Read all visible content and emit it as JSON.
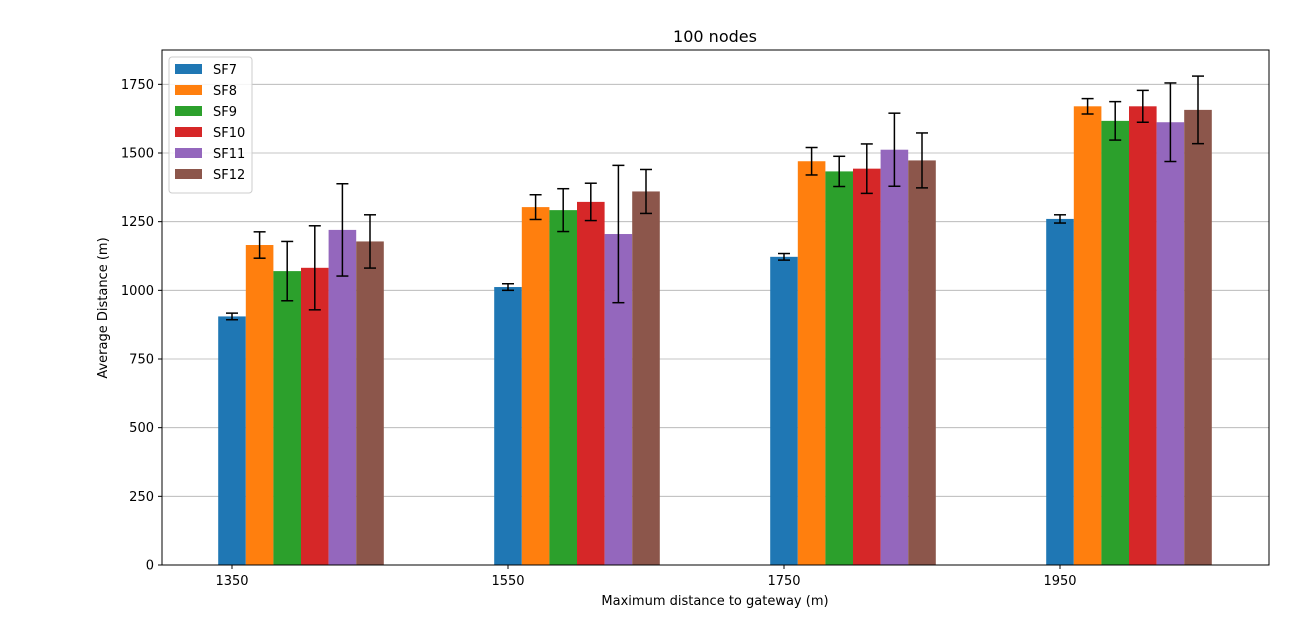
{
  "chart_data": {
    "type": "bar",
    "title": "100 nodes",
    "xlabel": "Maximum distance to gateway (m)",
    "ylabel": "Average Distance (m)",
    "categories": [
      "1350",
      "1550",
      "1750",
      "1950"
    ],
    "ylim": [
      0,
      1875
    ],
    "yticks": [
      0,
      250,
      500,
      750,
      1000,
      1250,
      1500,
      1750
    ],
    "grid": "horizontal",
    "legend_position": "top-left",
    "series": [
      {
        "name": "SF7",
        "color": "#1f77b4",
        "values": [
          905,
          1012,
          1122,
          1260
        ],
        "errors": [
          12,
          12,
          12,
          15
        ]
      },
      {
        "name": "SF8",
        "color": "#ff7f0e",
        "values": [
          1165,
          1303,
          1470,
          1670
        ],
        "errors": [
          48,
          45,
          50,
          28
        ]
      },
      {
        "name": "SF9",
        "color": "#2ca02c",
        "values": [
          1070,
          1292,
          1433,
          1617
        ],
        "errors": [
          108,
          78,
          55,
          70
        ]
      },
      {
        "name": "SF10",
        "color": "#d62728",
        "values": [
          1082,
          1322,
          1443,
          1670
        ],
        "errors": [
          153,
          68,
          90,
          58
        ]
      },
      {
        "name": "SF11",
        "color": "#9467bd",
        "values": [
          1220,
          1205,
          1512,
          1612
        ],
        "errors": [
          168,
          250,
          133,
          143
        ]
      },
      {
        "name": "SF12",
        "color": "#8c564b",
        "values": [
          1178,
          1360,
          1473,
          1657
        ],
        "errors": [
          97,
          80,
          100,
          123
        ]
      }
    ]
  }
}
